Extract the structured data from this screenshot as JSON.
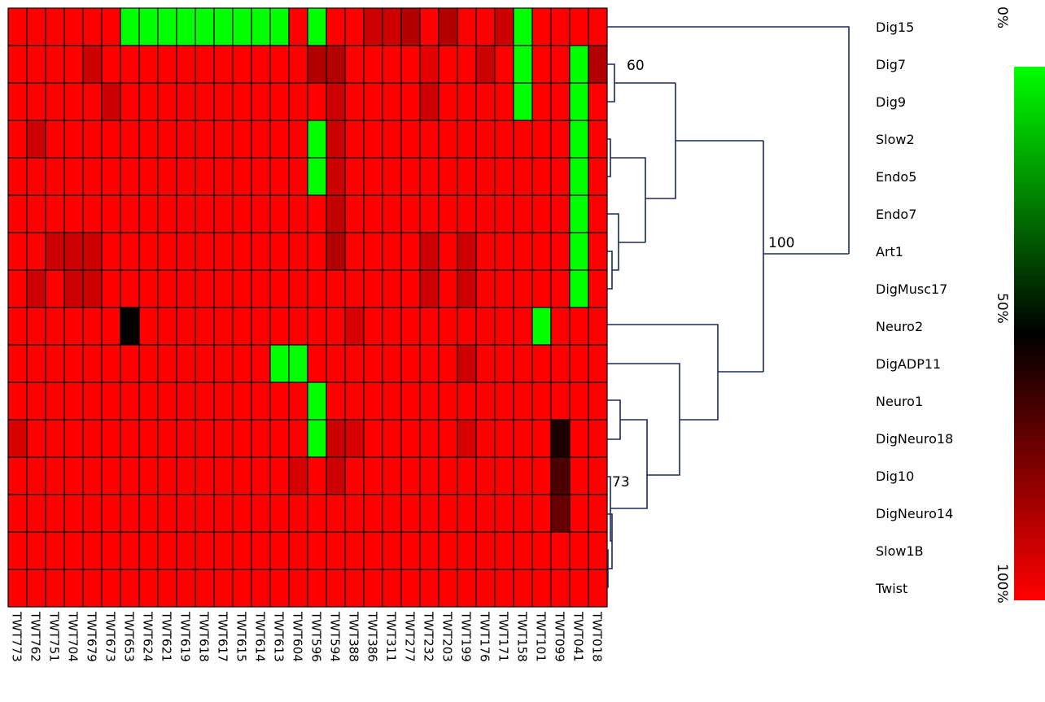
{
  "chart_data": {
    "type": "heatmap",
    "columns": [
      "TWT773",
      "TWT762",
      "TWT751",
      "TWT704",
      "TWT679",
      "TWT673",
      "TWT653",
      "TWT624",
      "TWT621",
      "TWT619",
      "TWT618",
      "TWT617",
      "TWT615",
      "TWT614",
      "TWT613",
      "TWT604",
      "TWT596",
      "TWT594",
      "TWT388",
      "TWT386",
      "TWT311",
      "TWT277",
      "TWT232",
      "TWT203",
      "TWT199",
      "TWT176",
      "TWT171",
      "TWT158",
      "TWT101",
      "TWT099",
      "TWT041",
      "TWT018"
    ],
    "rows": [
      "Dig15",
      "Dig7",
      "Dig9",
      "Slow2",
      "Endo5",
      "Endo7",
      "Art1",
      "DigMusc17",
      "Neuro2",
      "DigADP11",
      "Neuro1",
      "DigNeuro18",
      "Dig10",
      "DigNeuro14",
      "Slow1B",
      "Twist"
    ],
    "values": [
      [
        100,
        100,
        100,
        100,
        100,
        100,
        0,
        0,
        0,
        0,
        0,
        0,
        0,
        0,
        0,
        100,
        0,
        100,
        100,
        90,
        90,
        85,
        100,
        85,
        100,
        100,
        90,
        0,
        100,
        100,
        100,
        100
      ],
      [
        100,
        100,
        100,
        100,
        90,
        100,
        100,
        100,
        100,
        100,
        100,
        100,
        100,
        100,
        100,
        100,
        85,
        85,
        100,
        100,
        100,
        100,
        95,
        100,
        100,
        90,
        100,
        0,
        100,
        100,
        0,
        85
      ],
      [
        100,
        100,
        100,
        100,
        100,
        90,
        100,
        100,
        100,
        100,
        100,
        100,
        100,
        100,
        100,
        100,
        100,
        90,
        100,
        100,
        100,
        100,
        90,
        100,
        100,
        100,
        100,
        0,
        100,
        100,
        0,
        100
      ],
      [
        100,
        90,
        100,
        100,
        100,
        100,
        100,
        100,
        100,
        100,
        100,
        100,
        100,
        100,
        100,
        100,
        0,
        90,
        100,
        100,
        100,
        100,
        100,
        100,
        100,
        100,
        100,
        100,
        100,
        100,
        0,
        100
      ],
      [
        100,
        100,
        100,
        100,
        100,
        100,
        100,
        100,
        100,
        100,
        100,
        100,
        100,
        100,
        100,
        100,
        0,
        90,
        100,
        100,
        100,
        100,
        100,
        100,
        100,
        100,
        100,
        100,
        100,
        100,
        0,
        100
      ],
      [
        100,
        100,
        100,
        100,
        100,
        100,
        100,
        100,
        100,
        100,
        100,
        100,
        100,
        100,
        100,
        100,
        100,
        88,
        100,
        100,
        100,
        100,
        100,
        100,
        100,
        100,
        100,
        100,
        100,
        100,
        0,
        100
      ],
      [
        100,
        100,
        90,
        90,
        90,
        100,
        100,
        100,
        100,
        100,
        100,
        100,
        100,
        100,
        100,
        100,
        100,
        85,
        100,
        100,
        100,
        100,
        90,
        100,
        90,
        100,
        100,
        100,
        100,
        100,
        0,
        100
      ],
      [
        100,
        90,
        100,
        90,
        90,
        100,
        100,
        100,
        100,
        100,
        100,
        100,
        100,
        100,
        100,
        100,
        100,
        100,
        100,
        100,
        100,
        100,
        90,
        100,
        90,
        100,
        100,
        100,
        100,
        100,
        0,
        100
      ],
      [
        100,
        100,
        100,
        100,
        100,
        100,
        50,
        100,
        100,
        100,
        100,
        100,
        100,
        100,
        100,
        100,
        100,
        100,
        92,
        100,
        100,
        100,
        100,
        100,
        100,
        100,
        100,
        100,
        0,
        100,
        100,
        100
      ],
      [
        100,
        100,
        100,
        100,
        100,
        100,
        100,
        100,
        100,
        100,
        100,
        100,
        100,
        100,
        0,
        0,
        100,
        100,
        100,
        100,
        100,
        100,
        100,
        100,
        90,
        100,
        100,
        100,
        100,
        100,
        100,
        100
      ],
      [
        100,
        100,
        100,
        100,
        100,
        100,
        100,
        100,
        100,
        100,
        100,
        100,
        100,
        100,
        100,
        100,
        0,
        100,
        100,
        100,
        100,
        100,
        100,
        100,
        100,
        100,
        100,
        100,
        100,
        100,
        100,
        100
      ],
      [
        92,
        100,
        100,
        100,
        100,
        100,
        100,
        100,
        100,
        100,
        100,
        100,
        100,
        100,
        100,
        100,
        0,
        90,
        92,
        100,
        100,
        100,
        100,
        100,
        92,
        100,
        100,
        100,
        100,
        55,
        100,
        100
      ],
      [
        100,
        100,
        100,
        100,
        100,
        100,
        100,
        100,
        100,
        100,
        100,
        100,
        100,
        100,
        100,
        92,
        100,
        90,
        100,
        100,
        100,
        100,
        100,
        100,
        100,
        100,
        100,
        100,
        100,
        65,
        100,
        100
      ],
      [
        100,
        100,
        100,
        100,
        100,
        100,
        100,
        100,
        100,
        100,
        100,
        100,
        100,
        100,
        100,
        100,
        100,
        100,
        100,
        100,
        100,
        100,
        100,
        100,
        100,
        100,
        100,
        100,
        100,
        70,
        100,
        100
      ],
      [
        100,
        100,
        100,
        100,
        100,
        100,
        100,
        100,
        100,
        100,
        100,
        100,
        100,
        100,
        100,
        100,
        100,
        100,
        100,
        100,
        100,
        100,
        100,
        100,
        100,
        100,
        100,
        100,
        100,
        100,
        100,
        100
      ],
      [
        100,
        100,
        100,
        100,
        100,
        100,
        100,
        100,
        100,
        100,
        100,
        100,
        100,
        100,
        100,
        100,
        100,
        100,
        100,
        100,
        100,
        100,
        100,
        100,
        100,
        100,
        100,
        100,
        100,
        100,
        100,
        100
      ]
    ],
    "color_scale": {
      "low_label": "0%",
      "mid_label": "50%",
      "high_label": "100%",
      "low_color": "#00ff00",
      "mid_color": "#000000",
      "high_color": "#ff0000",
      "range": [
        0,
        100
      ]
    },
    "dendrogram_labels": [
      "60",
      "100",
      "73"
    ]
  }
}
